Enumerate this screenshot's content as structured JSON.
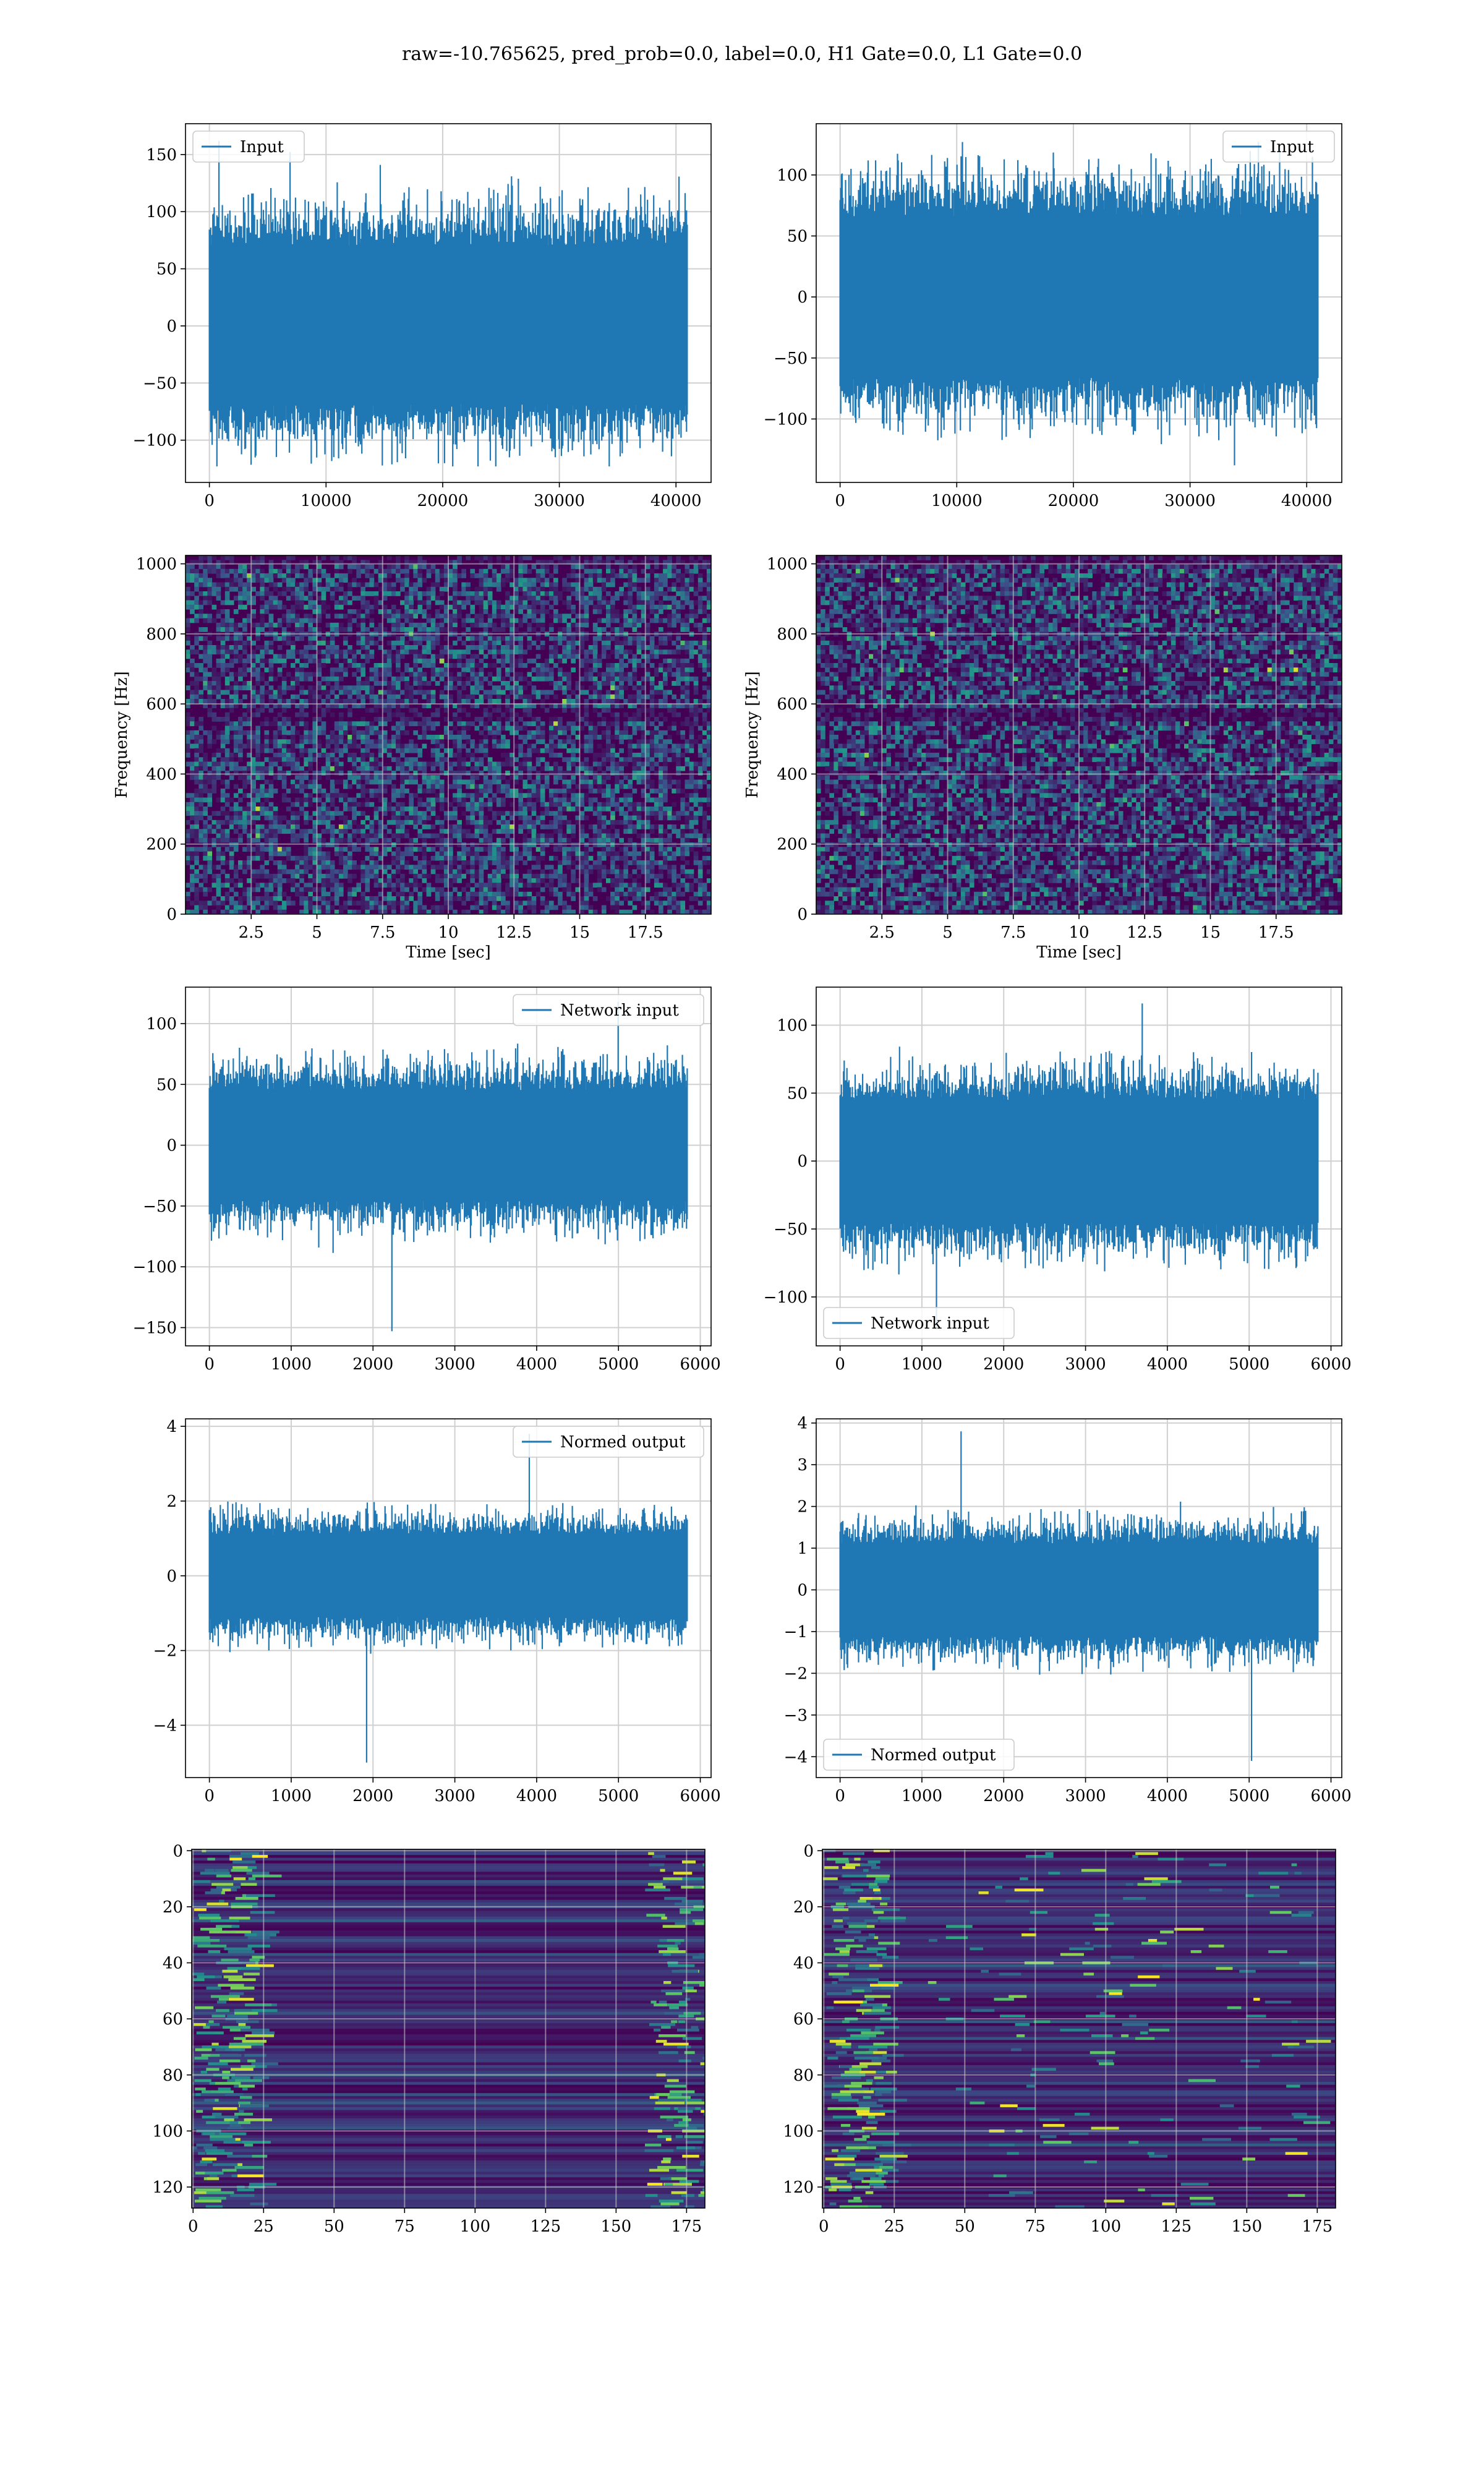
{
  "title": "raw=-10.765625, pred_prob=0.0, label=0.0, H1 Gate=0.0, L1 Gate=0.0",
  "colors": {
    "line": "#1f77b4",
    "grid": "#d0d0d0",
    "viridis": [
      "#440154",
      "#3b528b",
      "#21918c",
      "#5ec962",
      "#fde725"
    ]
  },
  "chart_data": [
    {
      "type": "line",
      "id": "input-h1",
      "series": [
        {
          "name": "Input",
          "envelope": {
            "n": 40960,
            "core": [
              -68,
              70
            ],
            "min": -123,
            "max": 162
          }
        }
      ],
      "xlim": [
        -2048,
        43008
      ],
      "ylim": [
        -137,
        177
      ],
      "xticks": [
        0,
        10000,
        20000,
        30000,
        40000
      ],
      "yticks": [
        -100,
        -50,
        0,
        50,
        100,
        150
      ],
      "legend": "top-left",
      "grid": true
    },
    {
      "type": "line",
      "id": "input-l1",
      "series": [
        {
          "name": "Input",
          "envelope": {
            "n": 40960,
            "core": [
              -66,
              66
            ],
            "min": -138,
            "max": 127
          }
        }
      ],
      "xlim": [
        -2048,
        43008
      ],
      "ylim": [
        -152,
        142
      ],
      "xticks": [
        0,
        10000,
        20000,
        30000,
        40000
      ],
      "yticks": [
        -100,
        -50,
        0,
        50,
        100
      ],
      "legend": "top-right",
      "grid": true
    },
    {
      "type": "heatmap",
      "id": "spectrogram-h1",
      "xlabel": "Time [sec]",
      "ylabel": "Frequency [Hz]",
      "xlim": [
        0,
        20
      ],
      "ylim": [
        0,
        1024
      ],
      "xticks": [
        2.5,
        5.0,
        7.5,
        10.0,
        12.5,
        15.0,
        17.5
      ],
      "yticks": [
        0,
        200,
        400,
        600,
        800,
        1000
      ],
      "grid": true
    },
    {
      "type": "heatmap",
      "id": "spectrogram-l1",
      "xlabel": "Time [sec]",
      "ylabel": "Frequency [Hz]",
      "xlim": [
        0,
        20
      ],
      "ylim": [
        0,
        1024
      ],
      "xticks": [
        2.5,
        5.0,
        7.5,
        10.0,
        12.5,
        15.0,
        17.5
      ],
      "yticks": [
        0,
        200,
        400,
        600,
        800,
        1000
      ],
      "grid": true
    },
    {
      "type": "line",
      "id": "network-input-h1",
      "series": [
        {
          "name": "Network input",
          "envelope": {
            "n": 5840,
            "core": [
              -45,
              45
            ],
            "min": -153,
            "max": 118
          }
        }
      ],
      "xlim": [
        -292,
        6132
      ],
      "ylim": [
        -165,
        130
      ],
      "xticks": [
        0,
        1000,
        2000,
        3000,
        4000,
        5000,
        6000
      ],
      "yticks": [
        -150,
        -100,
        -50,
        0,
        50,
        100
      ],
      "legend": "top-right",
      "grid": true
    },
    {
      "type": "line",
      "id": "network-input-l1",
      "series": [
        {
          "name": "Network input",
          "envelope": {
            "n": 5840,
            "core": [
              -45,
              45
            ],
            "min": -124,
            "max": 116
          }
        }
      ],
      "xlim": [
        -292,
        6132
      ],
      "ylim": [
        -136,
        128
      ],
      "xticks": [
        0,
        1000,
        2000,
        3000,
        4000,
        5000,
        6000
      ],
      "yticks": [
        -100,
        -50,
        0,
        50,
        100
      ],
      "legend": "bottom-left",
      "grid": true
    },
    {
      "type": "line",
      "id": "normed-output-h1",
      "series": [
        {
          "name": "Normed output",
          "envelope": {
            "n": 5840,
            "core": [
              -1.1,
              1.1
            ],
            "min": -5.0,
            "max": 3.8
          }
        }
      ],
      "xlim": [
        -292,
        6132
      ],
      "ylim": [
        -5.4,
        4.2
      ],
      "xticks": [
        0,
        1000,
        2000,
        3000,
        4000,
        5000,
        6000
      ],
      "yticks": [
        -4,
        -2,
        0,
        2,
        4
      ],
      "legend": "top-right",
      "grid": true
    },
    {
      "type": "line",
      "id": "normed-output-l1",
      "series": [
        {
          "name": "Normed output",
          "envelope": {
            "n": 5840,
            "core": [
              -1.1,
              1.1
            ],
            "min": -4.1,
            "max": 3.8
          }
        }
      ],
      "xlim": [
        -292,
        6132
      ],
      "ylim": [
        -4.5,
        4.1
      ],
      "xticks": [
        0,
        1000,
        2000,
        3000,
        4000,
        5000,
        6000
      ],
      "yticks": [
        -4,
        -3,
        -2,
        -1,
        0,
        1,
        2,
        3,
        4
      ],
      "legend": "bottom-left",
      "grid": true
    },
    {
      "type": "heatmap",
      "id": "features-h1",
      "xlim": [
        -0.5,
        181.5
      ],
      "ylim": [
        127.5,
        -0.5
      ],
      "xticks": [
        0,
        25,
        50,
        75,
        100,
        125,
        150,
        175
      ],
      "yticks": [
        0,
        20,
        40,
        60,
        80,
        100,
        120
      ],
      "grid": true
    },
    {
      "type": "heatmap",
      "id": "features-l1",
      "xlim": [
        -0.5,
        181.5
      ],
      "ylim": [
        127.5,
        -0.5
      ],
      "xticks": [
        0,
        25,
        50,
        75,
        100,
        125,
        150,
        175
      ],
      "yticks": [
        0,
        20,
        40,
        60,
        80,
        100,
        120
      ],
      "grid": true
    }
  ]
}
